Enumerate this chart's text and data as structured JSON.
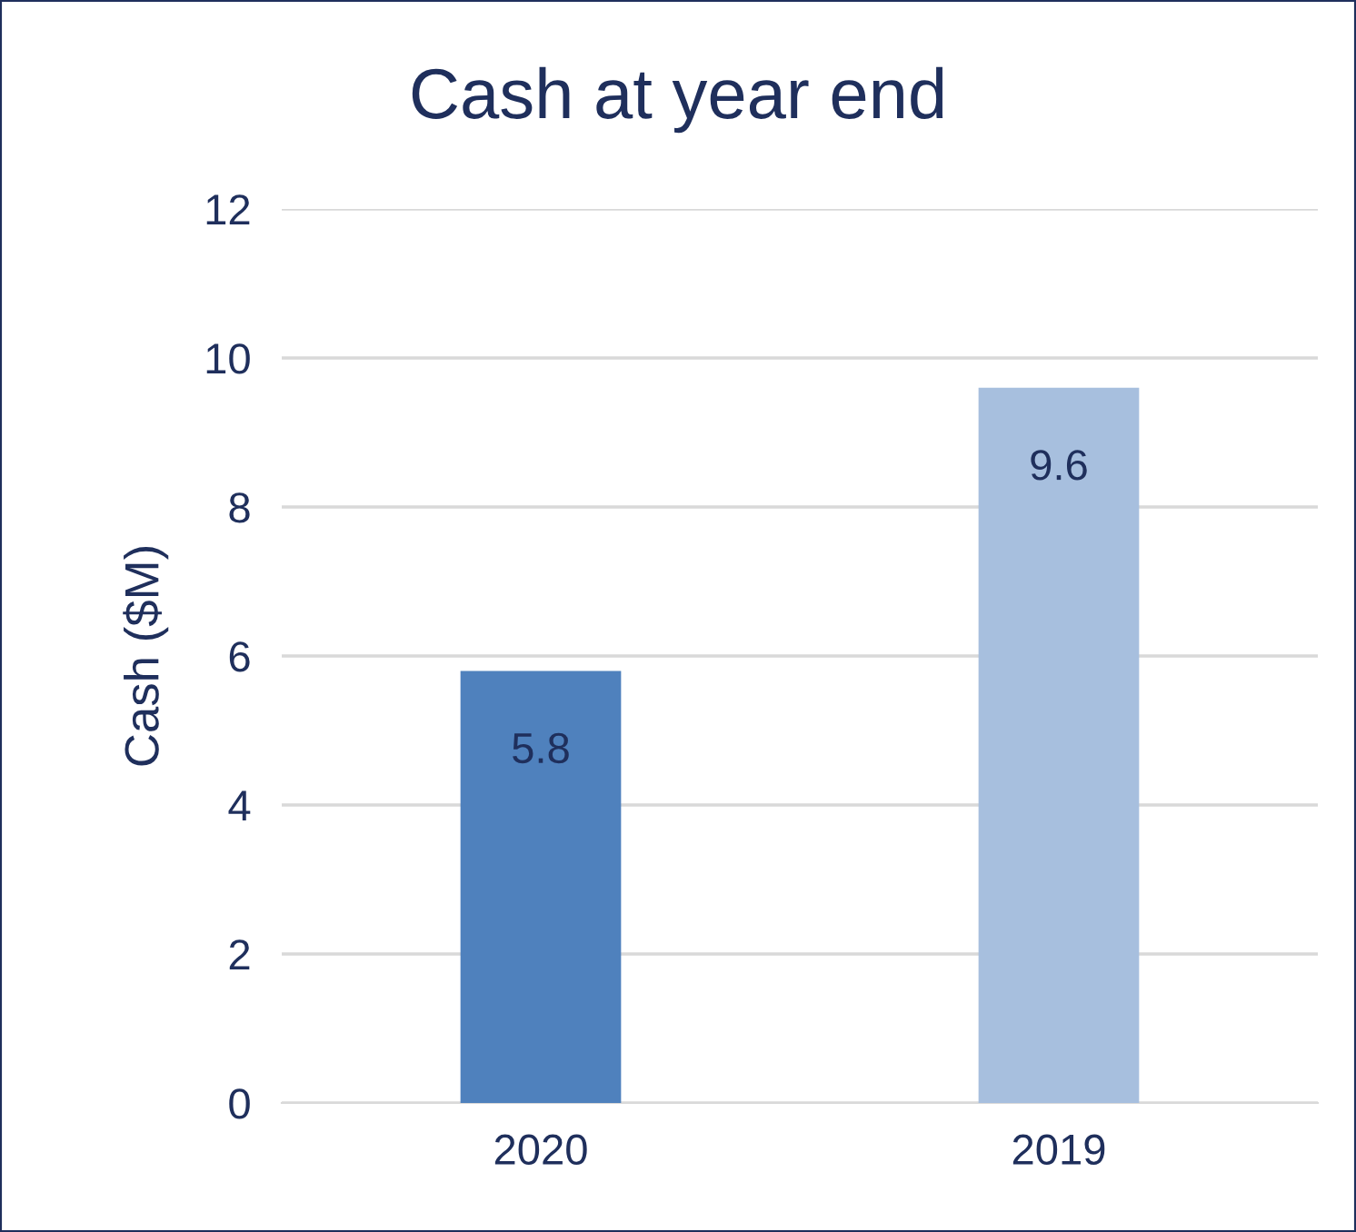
{
  "chart_data": {
    "type": "bar",
    "title": "Cash at year end",
    "ylabel": "Cash ($M)",
    "categories": [
      "2020",
      "2019"
    ],
    "values": [
      5.8,
      9.6
    ],
    "colors": [
      "#4f81bd",
      "#a7bfde"
    ],
    "ylim": [
      0,
      12
    ],
    "yticks": [
      0,
      2,
      4,
      6,
      8,
      10,
      12
    ],
    "grid": "y",
    "data_labels": true,
    "legend": false
  }
}
